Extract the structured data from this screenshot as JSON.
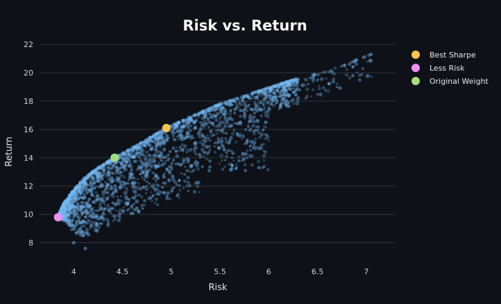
{
  "chart_data": {
    "type": "scatter",
    "title": "Risk vs. Return",
    "xlabel": "Risk",
    "ylabel": "Return",
    "xlim": [
      3.65,
      7.3
    ],
    "ylim": [
      7.0,
      22.3
    ],
    "xticks": [
      4,
      4.5,
      5,
      5.5,
      6,
      6.5,
      7
    ],
    "xtick_labels": [
      "4",
      "4.5",
      "5",
      "5.5",
      "6",
      "6.5",
      "7"
    ],
    "yticks": [
      8,
      10,
      12,
      14,
      16,
      18,
      20,
      22
    ],
    "ytick_labels": [
      "8",
      "10",
      "12",
      "14",
      "16",
      "18",
      "20",
      "22"
    ],
    "grid": "horizontal",
    "legend_position": "top-right",
    "cloud": {
      "color": "#74b9f5",
      "frontier": [
        [
          3.84,
          9.8
        ],
        [
          3.9,
          10.8
        ],
        [
          4.0,
          11.7
        ],
        [
          4.1,
          12.5
        ],
        [
          4.25,
          13.3
        ],
        [
          4.42,
          14.0
        ],
        [
          4.6,
          14.7
        ],
        [
          4.8,
          15.5
        ],
        [
          4.95,
          16.1
        ],
        [
          5.2,
          16.9
        ],
        [
          5.5,
          17.8
        ],
        [
          5.8,
          18.5
        ],
        [
          6.2,
          19.4
        ],
        [
          6.6,
          20.1
        ],
        [
          7.05,
          21.3
        ]
      ],
      "inefficient_edge": [
        [
          3.84,
          9.8
        ],
        [
          3.95,
          9.2
        ],
        [
          4.0,
          8.7
        ],
        [
          4.1,
          8.4
        ],
        [
          4.3,
          9.0
        ],
        [
          4.6,
          10.0
        ],
        [
          5.0,
          11.0
        ],
        [
          5.4,
          11.8
        ],
        [
          5.8,
          12.5
        ],
        [
          6.0,
          13.0
        ]
      ],
      "outliers": [
        [
          4.12,
          7.6
        ],
        [
          4.0,
          8.0
        ],
        [
          5.9,
          13.3
        ],
        [
          5.6,
          15.2
        ],
        [
          6.9,
          20.9
        ],
        [
          7.05,
          21.3
        ]
      ]
    },
    "series": [
      {
        "name": "Best Sharpe",
        "color": "#f7c64b",
        "x": 4.95,
        "y": 16.1
      },
      {
        "name": "Less Risk",
        "color": "#f18ff0",
        "x": 3.84,
        "y": 9.8
      },
      {
        "name": "Original Weight",
        "color": "#a6dd7c",
        "x": 4.42,
        "y": 14.0
      }
    ]
  }
}
